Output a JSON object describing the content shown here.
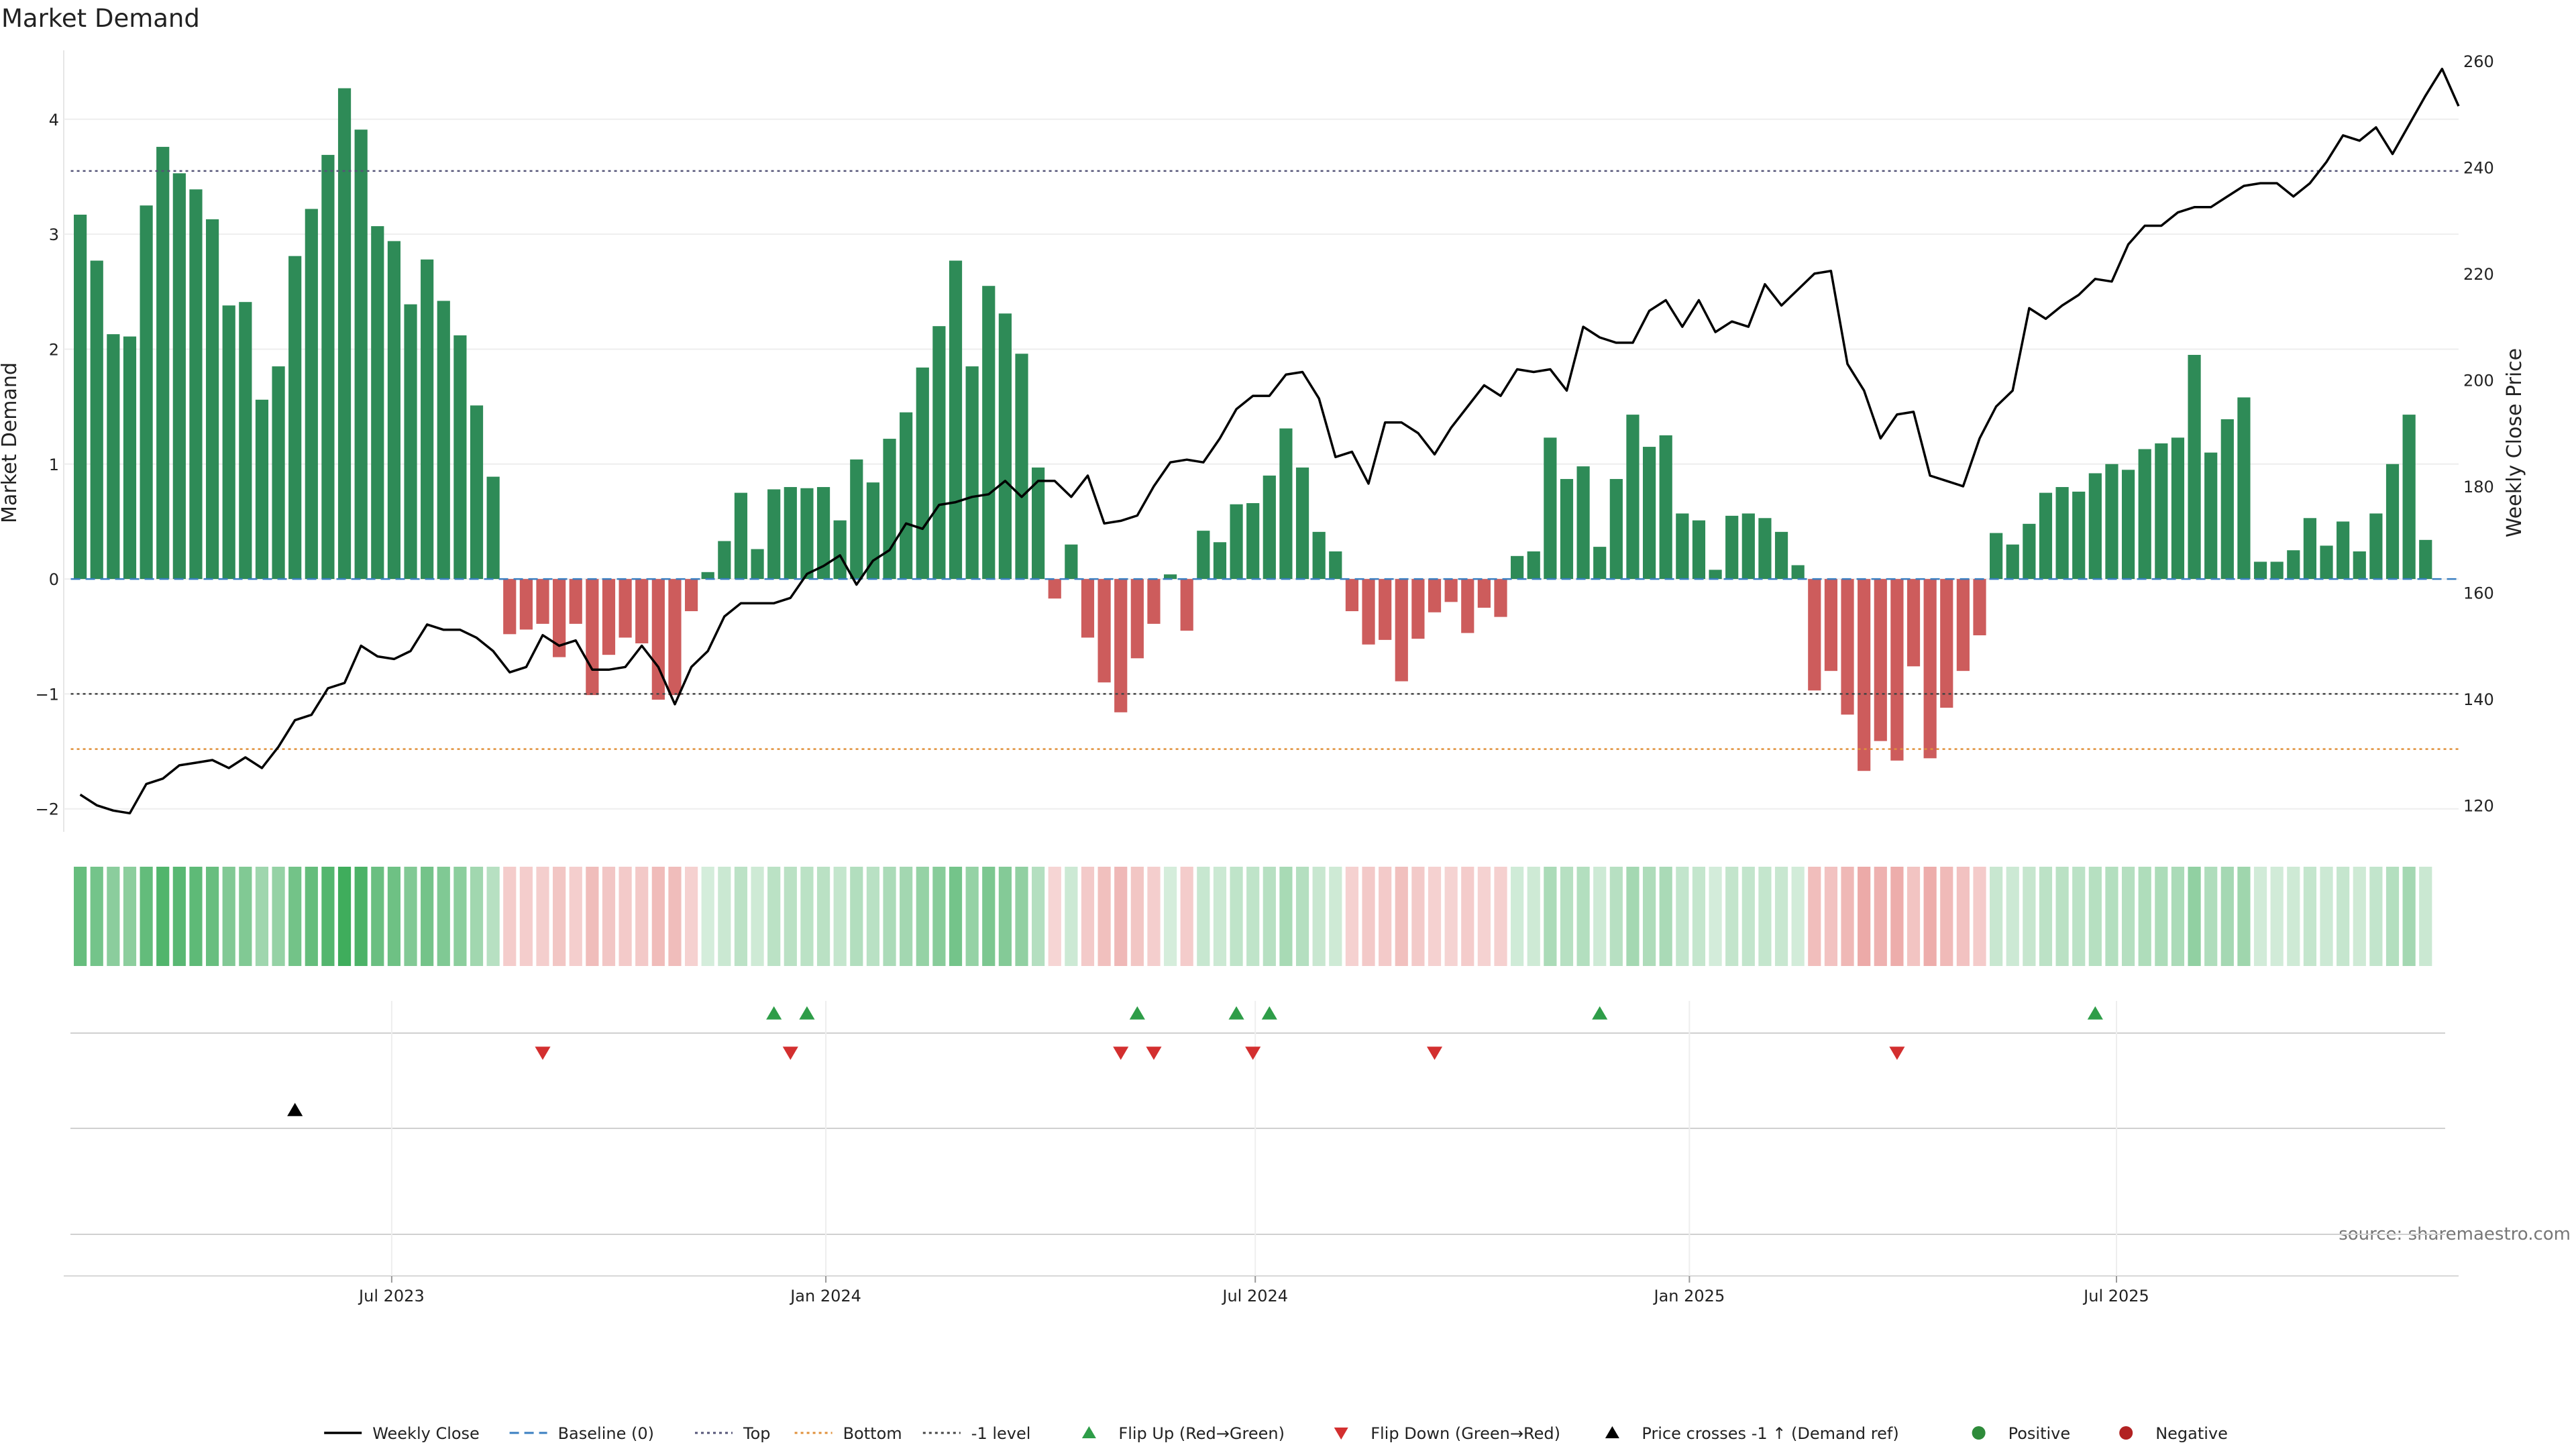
{
  "chart_data": {
    "type": "bar",
    "title": "Market Demand",
    "ylabel": "Market Demand",
    "y2label": "Weekly Close Price",
    "ylim": [
      -2.2,
      4.6
    ],
    "y2lim": [
      115,
      262
    ],
    "yticks": [
      "−2",
      "−1",
      "0",
      "1",
      "2",
      "3",
      "4"
    ],
    "y2ticks": [
      "120",
      "140",
      "160",
      "180",
      "200",
      "220",
      "240",
      "260"
    ],
    "xlim": [
      "2023-02-12",
      "2025-11-23"
    ],
    "x_ticks": [
      {
        "date": "2023-07-01",
        "label": "Jul 2023"
      },
      {
        "date": "2024-01-01",
        "label": "Jan 2024"
      },
      {
        "date": "2024-07-01",
        "label": "Jul 2024"
      },
      {
        "date": "2025-01-01",
        "label": "Jan 2025"
      },
      {
        "date": "2025-07-01",
        "label": "Jul 2025"
      }
    ],
    "start_date": "2023-02-19",
    "levels": {
      "top": 3.55,
      "minus_one": -1.0,
      "bottom": -1.48,
      "baseline": 0
    },
    "demand": [
      3.17,
      2.77,
      2.13,
      2.11,
      3.25,
      3.76,
      3.53,
      3.39,
      3.13,
      2.38,
      2.41,
      1.56,
      1.85,
      2.81,
      3.22,
      3.69,
      4.27,
      3.91,
      3.07,
      2.94,
      2.39,
      2.78,
      2.42,
      2.12,
      1.51,
      0.89,
      -0.48,
      -0.44,
      -0.39,
      -0.68,
      -0.39,
      -1.01,
      -0.66,
      -0.51,
      -0.56,
      -1.05,
      -1.01,
      -0.28,
      0.06,
      0.33,
      0.75,
      0.26,
      0.78,
      0.8,
      0.79,
      0.8,
      0.51,
      1.04,
      0.84,
      1.22,
      1.45,
      1.84,
      2.2,
      2.77,
      1.85,
      2.55,
      2.31,
      1.96,
      0.97,
      -0.17,
      0.3,
      -0.51,
      -0.9,
      -1.16,
      -0.69,
      -0.39,
      0.04,
      -0.45,
      0.42,
      0.32,
      0.65,
      0.66,
      0.9,
      1.31,
      0.97,
      0.41,
      0.24,
      -0.28,
      -0.57,
      -0.53,
      -0.89,
      -0.52,
      -0.29,
      -0.2,
      -0.47,
      -0.25,
      -0.33,
      0.2,
      0.24,
      1.23,
      0.87,
      0.98,
      0.28,
      0.87,
      1.43,
      1.15,
      1.25,
      0.57,
      0.51,
      0.08,
      0.55,
      0.57,
      0.53,
      0.41,
      0.12,
      -0.97,
      -0.8,
      -1.18,
      -1.67,
      -1.41,
      -1.58,
      -0.76,
      -1.56,
      -1.12,
      -0.8,
      -0.49,
      0.4,
      0.3,
      0.48,
      0.75,
      0.8,
      0.76,
      0.92,
      1.0,
      0.95,
      1.13,
      1.18,
      1.23,
      1.95,
      1.1,
      1.39,
      1.58,
      0.15,
      0.15,
      0.25,
      0.53,
      0.29,
      0.5,
      0.24,
      0.57,
      1.0,
      1.43,
      0.34
    ],
    "close": [
      122,
      120,
      119,
      118.5,
      124,
      125,
      127.5,
      128,
      128.5,
      127,
      129,
      127,
      131,
      136,
      137,
      142,
      143,
      150,
      148,
      147.5,
      149,
      154,
      153,
      153,
      151.5,
      149,
      145,
      146,
      152,
      150,
      151,
      145.5,
      145.5,
      146,
      150,
      146,
      139,
      146,
      149,
      155.5,
      158,
      158,
      158,
      159,
      163.5,
      165,
      167,
      161.5,
      166,
      168,
      173,
      172,
      176.5,
      177,
      178,
      178.5,
      181,
      178,
      181,
      181,
      178,
      182,
      173,
      173.5,
      174.5,
      180,
      184.5,
      185,
      184.5,
      189,
      194.5,
      197,
      197,
      201,
      201.5,
      196.5,
      185.5,
      186.5,
      180.5,
      192,
      192,
      190,
      186,
      191,
      195,
      199,
      197,
      202,
      201.5,
      202,
      198,
      210,
      208,
      207,
      207,
      213,
      215,
      210,
      215,
      209,
      211,
      210,
      218,
      214,
      217,
      220,
      220.5,
      203,
      198,
      189,
      193.5,
      194,
      182,
      181,
      180,
      189,
      195,
      198,
      213.5,
      211.5,
      214,
      216,
      219,
      218.5,
      225.5,
      229,
      229,
      231.5,
      232.5,
      232.5,
      234.5,
      236.5,
      237,
      237,
      234.5,
      237,
      241,
      246,
      245,
      247.5,
      242.5,
      248,
      253.5,
      258.5,
      251.5
    ],
    "strip_band": {
      "positive_color": "#34a853",
      "negative_color": "#d9534f"
    },
    "flip_up_dates": [
      "2023-12-10",
      "2023-12-24",
      "2024-05-12",
      "2024-06-23",
      "2024-07-07",
      "2024-11-24",
      "2025-06-22"
    ],
    "flip_down_dates": [
      "2023-09-03",
      "2023-12-17",
      "2024-05-05",
      "2024-05-19",
      "2024-06-30",
      "2024-09-15",
      "2025-03-30"
    ],
    "price_cross_dates": [
      "2023-05-21"
    ],
    "legend": [
      {
        "label": "Weekly Close",
        "kind": "line",
        "color": "#000000"
      },
      {
        "label": "Baseline (0)",
        "kind": "dash",
        "color": "#3a7fc1"
      },
      {
        "label": "Top",
        "kind": "dot",
        "color": "#555577"
      },
      {
        "label": "Bottom",
        "kind": "dot",
        "color": "#e0903a"
      },
      {
        "label": "-1 level",
        "kind": "dot",
        "color": "#444444"
      },
      {
        "label": "Flip Up (Red→Green)",
        "kind": "tri-up",
        "color": "#2e9d48"
      },
      {
        "label": "Flip Down (Green→Red)",
        "kind": "tri-down",
        "color": "#d32f2f"
      },
      {
        "label": "Price crosses -1 ↑ (Demand ref)",
        "kind": "tri-up",
        "color": "#000000"
      },
      {
        "label": "Positive",
        "kind": "circle",
        "color": "#2e8b3a"
      },
      {
        "label": "Negative",
        "kind": "circle",
        "color": "#b22222"
      }
    ],
    "source": "source: sharemaestro.com",
    "colors": {
      "positive": "#2e8b57",
      "negative": "#cd5c5c",
      "close": "#000000"
    }
  }
}
